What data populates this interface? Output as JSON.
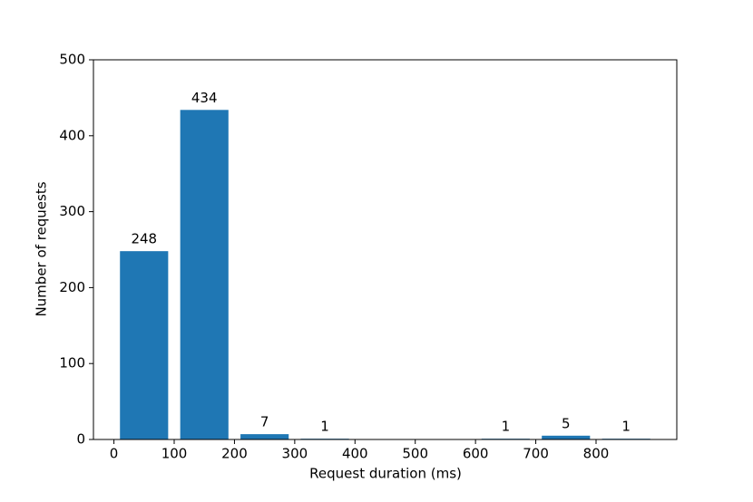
{
  "chart_data": {
    "type": "histogram",
    "x_label": "Request duration (ms)",
    "y_label": "Number of requests",
    "bins": [
      0,
      100,
      200,
      300,
      400,
      500,
      600,
      700,
      800,
      900
    ],
    "values": [
      248,
      434,
      7,
      1,
      0,
      0,
      1,
      5,
      1
    ],
    "color": "#1f77b4",
    "xlim": [
      -34,
      934
    ],
    "xticks": [
      0,
      100,
      200,
      300,
      400,
      500,
      600,
      700,
      800
    ],
    "ylim": [
      0,
      500
    ],
    "yticks": [
      0,
      100,
      200,
      300,
      400,
      500
    ],
    "grid": false
  }
}
